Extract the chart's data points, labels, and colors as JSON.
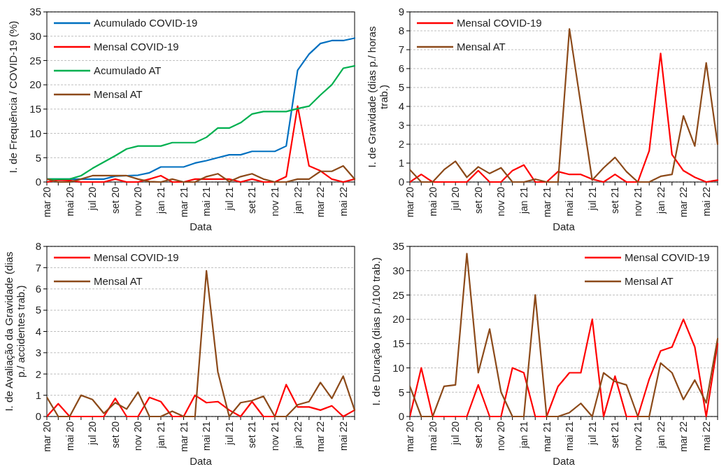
{
  "chart_data": [
    {
      "type": "line",
      "xlabel": "Data",
      "ylabel": "I. de Frequência / COVID-19 (%)",
      "categories": [
        "mar 20",
        null,
        "mai 20",
        null,
        "jul 20",
        null,
        "set 20",
        null,
        "nov 20",
        null,
        "jan 21",
        null,
        "mar 21",
        null,
        "mai 21",
        null,
        "jul 21",
        null,
        "set 21",
        null,
        "nov 21",
        null,
        "jan 22",
        null,
        "mar 22",
        null,
        "mai 22",
        null
      ],
      "series": [
        {
          "name": "Acumulado COVID-19",
          "color": "#0070c0",
          "values": [
            0.6,
            0.6,
            0.6,
            0.6,
            0.6,
            0.6,
            1.2,
            1.3,
            1.4,
            1.9,
            3.1,
            3.1,
            3.1,
            3.9,
            4.4,
            5.0,
            5.6,
            5.6,
            6.3,
            6.3,
            6.3,
            7.4,
            23.0,
            26.3,
            28.5,
            29.1,
            29.1,
            29.6
          ]
        },
        {
          "name": "Mensal COVID-19",
          "color": "#ff0000",
          "values": [
            0,
            0.4,
            0.3,
            0,
            0,
            0,
            0.6,
            0,
            0,
            0.6,
            1.3,
            0,
            0,
            0.6,
            0.6,
            0.6,
            0.6,
            0,
            0.6,
            0,
            0,
            1.1,
            15.6,
            3.3,
            2.3,
            0.6,
            0,
            0.6
          ]
        },
        {
          "name": "Acumulado AT",
          "color": "#00b050",
          "values": [
            0.6,
            0.6,
            0.6,
            1.3,
            2.8,
            4.1,
            5.4,
            6.8,
            7.4,
            7.4,
            7.4,
            8.1,
            8.1,
            8.1,
            9.2,
            11.1,
            11.1,
            12.2,
            14.0,
            14.5,
            14.5,
            14.5,
            15.1,
            15.6,
            17.9,
            20.0,
            23.4,
            23.9
          ]
        },
        {
          "name": "Mensal AT",
          "color": "#8c4a1a",
          "values": [
            0.6,
            0,
            0,
            0.6,
            1.3,
            1.3,
            1.3,
            1.3,
            0.6,
            0.1,
            0,
            0.6,
            0,
            0,
            1.1,
            1.7,
            0.1,
            1.1,
            1.7,
            0.6,
            0,
            0,
            0.6,
            0.6,
            2.2,
            2.2,
            3.3,
            0.6
          ]
        }
      ],
      "ylim": [
        0,
        35
      ],
      "yticks": [
        0,
        5,
        10,
        15,
        20,
        25,
        30,
        35
      ],
      "grid": "y",
      "legend": "top left",
      "marker": "none",
      "line_style": "solid"
    },
    {
      "type": "line",
      "xlabel": "Data",
      "ylabel": "I. de Gravidade (dias p./ horas trab.)",
      "categories": [
        "mar 20",
        null,
        "mai 20",
        null,
        "jul 20",
        null,
        "set 20",
        null,
        "nov 20",
        null,
        "jan 21",
        null,
        "mar 21",
        null,
        "mai 21",
        null,
        "jul 21",
        null,
        "set 21",
        null,
        "nov 21",
        null,
        "jan 22",
        null,
        "mar 22",
        null,
        "mai 22",
        null
      ],
      "series": [
        {
          "name": "Mensal COVID-19",
          "color": "#ff0000",
          "values": [
            0,
            0.4,
            0,
            0,
            0,
            0,
            0.6,
            0,
            0,
            0.6,
            0.9,
            0,
            0,
            0.55,
            0.4,
            0.4,
            0.15,
            0,
            0.4,
            0,
            0,
            1.65,
            6.8,
            1.45,
            0.6,
            0.25,
            0,
            0.1
          ]
        },
        {
          "name": "Mensal AT",
          "color": "#8c4a1a",
          "values": [
            0.65,
            0,
            0,
            0.65,
            1.1,
            0.25,
            0.8,
            0.45,
            0.75,
            0,
            0,
            0.15,
            0,
            0,
            8.1,
            4.1,
            0.1,
            0.75,
            1.3,
            0.55,
            0,
            0,
            0.3,
            0.4,
            3.5,
            1.9,
            6.3,
            2
          ]
        }
      ],
      "ylim": [
        0,
        9
      ],
      "yticks": [
        0,
        1,
        2,
        3,
        4,
        5,
        6,
        7,
        8,
        9
      ],
      "grid": "y",
      "legend": "top left",
      "marker": "none",
      "line_style": "solid"
    },
    {
      "type": "line",
      "xlabel": "Data",
      "ylabel": "I. de Avaliação da Gravidade (dias p./ accidentes trab.)",
      "categories": [
        "mar 20",
        null,
        "mai 20",
        null,
        "jul 20",
        null,
        "set 20",
        null,
        "nov 20",
        null,
        "jan 21",
        null,
        "mar 21",
        null,
        "mai 21",
        null,
        "jul 21",
        null,
        "set 21",
        null,
        "nov 21",
        null,
        "jan 22",
        null,
        "mar 22",
        null,
        "mai 22",
        null
      ],
      "series": [
        {
          "name": "Mensal COVID-19",
          "color": "#ff0000",
          "values": [
            0,
            0.6,
            0,
            0,
            0,
            0,
            0.85,
            0,
            0,
            0.9,
            0.7,
            0,
            0,
            1.0,
            0.65,
            0.7,
            0.3,
            0,
            0.7,
            0,
            0,
            1.5,
            0.45,
            0.45,
            0.3,
            0.5,
            0,
            0.3
          ]
        },
        {
          "name": "Mensal AT",
          "color": "#8c4a1a",
          "values": [
            0.9,
            0,
            0,
            1.0,
            0.8,
            0.15,
            0.65,
            0.35,
            1.15,
            0,
            0,
            0.25,
            0,
            0,
            6.85,
            2.1,
            0,
            0.65,
            0.75,
            0.95,
            0,
            0,
            0.55,
            0.7,
            1.6,
            0.85,
            1.9,
            0.3
          ]
        }
      ],
      "ylim": [
        0,
        8
      ],
      "yticks": [
        0,
        1,
        2,
        3,
        4,
        5,
        6,
        7,
        8
      ],
      "grid": "y",
      "legend": "top left",
      "marker": "none",
      "line_style": "solid"
    },
    {
      "type": "line",
      "xlabel": "Data",
      "ylabel": "I. de Duração (dias p./100 trab.)",
      "categories": [
        "mar 20",
        null,
        "mai 20",
        null,
        "jul 20",
        null,
        "set 20",
        null,
        "nov 20",
        null,
        "jan 21",
        null,
        "mar 21",
        null,
        "mai 21",
        null,
        "jul 21",
        null,
        "set 21",
        null,
        "nov 21",
        null,
        "jan 22",
        null,
        "mar 22",
        null,
        "mai 22",
        null
      ],
      "series": [
        {
          "name": "Mensal COVID-19",
          "color": "#ff0000",
          "values": [
            0,
            10,
            0,
            0,
            0,
            0,
            6.5,
            0,
            0,
            10,
            9,
            0,
            0,
            6.2,
            9,
            9,
            20,
            0,
            8.3,
            0,
            0,
            7.7,
            13.5,
            14.3,
            20,
            14.3,
            0,
            15
          ]
        },
        {
          "name": "Mensal AT",
          "color": "#8c4a1a",
          "values": [
            6.2,
            0,
            0,
            6.2,
            6.5,
            33.5,
            9,
            18,
            5,
            0,
            0,
            25,
            0,
            0,
            0.8,
            2.7,
            0,
            9,
            7.2,
            6.5,
            0,
            0,
            11,
            9,
            3.5,
            7.5,
            2.8,
            16
          ]
        }
      ],
      "ylim": [
        0,
        35
      ],
      "yticks": [
        0,
        5,
        10,
        15,
        20,
        25,
        30,
        35
      ],
      "grid": "y",
      "legend": "top right",
      "marker": "none",
      "line_style": "solid"
    }
  ]
}
